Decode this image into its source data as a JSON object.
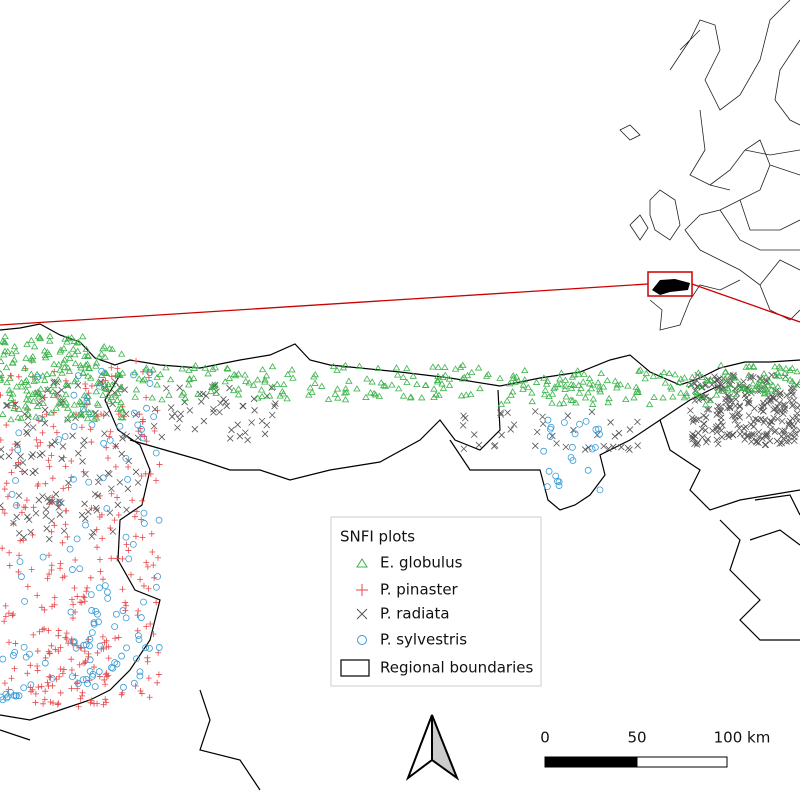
{
  "legend": {
    "title": "SNFI plots",
    "items": [
      "E. globulus",
      "P. pinaster",
      "P. radiata",
      "P. sylvestris",
      "Regional boundaries"
    ]
  },
  "scale_bar": {
    "labels": [
      "0",
      "50",
      "100 km"
    ]
  }
}
